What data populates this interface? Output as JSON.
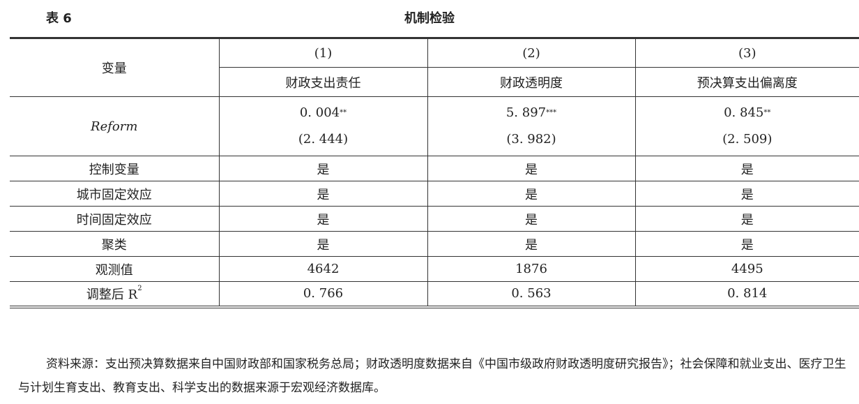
{
  "table_label": "表 6",
  "table_title": "机制检验",
  "header": {
    "variable": "变量",
    "columns": [
      {
        "num": "(1)",
        "name": "财政支出责任"
      },
      {
        "num": "(2)",
        "name": "财政透明度"
      },
      {
        "num": "(3)",
        "name": "预决算支出偏离度"
      }
    ]
  },
  "reform": {
    "label": "Reform",
    "coef": [
      "0. 004",
      "5. 897",
      "0. 845"
    ],
    "stars": [
      "**",
      "***",
      "**"
    ],
    "t": [
      "(2. 444)",
      "(3. 982)",
      "(2. 509)"
    ]
  },
  "rows": [
    {
      "label": "控制变量",
      "values": [
        "是",
        "是",
        "是"
      ]
    },
    {
      "label": "城市固定效应",
      "values": [
        "是",
        "是",
        "是"
      ]
    },
    {
      "label": "时间固定效应",
      "values": [
        "是",
        "是",
        "是"
      ]
    },
    {
      "label": "聚类",
      "values": [
        "是",
        "是",
        "是"
      ]
    },
    {
      "label": "观测值",
      "values": [
        "4642",
        "1876",
        "4495"
      ]
    }
  ],
  "r2": {
    "label": "调整后 R",
    "sup": "2",
    "values": [
      "0. 766",
      "0. 563",
      "0. 814"
    ]
  },
  "note": "资料来源：支出预决算数据来自中国财政部和国家税务总局；财政透明度数据来自《中国市级政府财政透明度研究报告》；社会保障和就业支出、医疗卫生与计划生育支出、教育支出、科学支出的数据来源于宏观经济数据库。"
}
